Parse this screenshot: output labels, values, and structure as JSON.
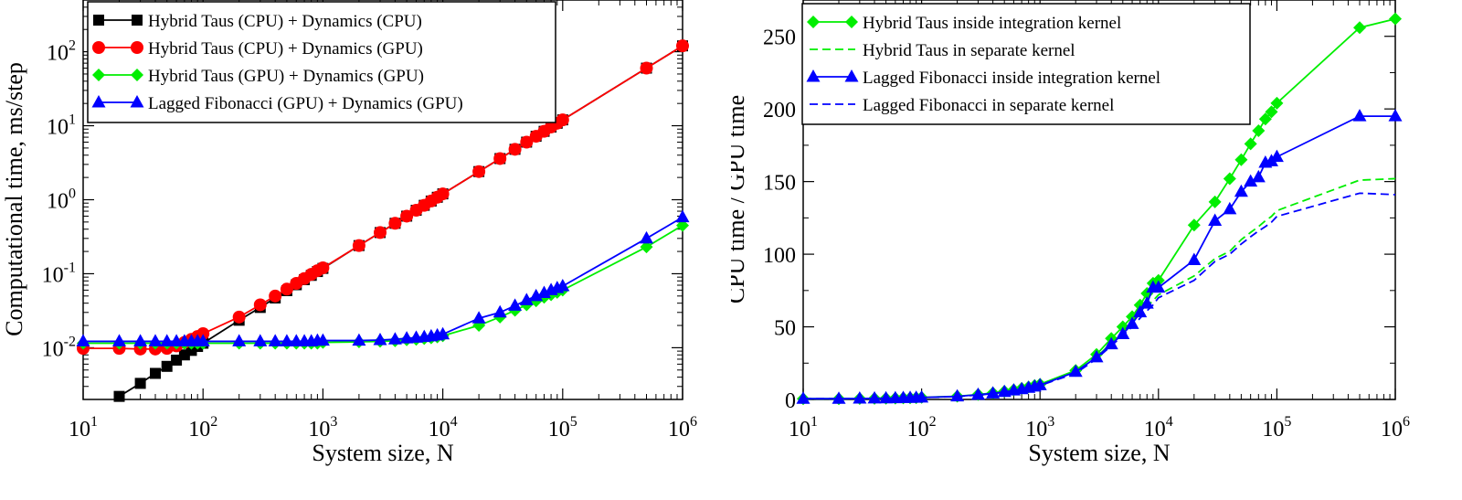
{
  "colors": {
    "cpu_cpu": "#000000",
    "cpu_gpu": "#ff0000",
    "gpu_gpu": "#00ee00",
    "lagged": "#0000ff"
  },
  "chart_data": [
    {
      "type": "line",
      "title": "",
      "xlabel": "System size, N",
      "ylabel": "Computational time, ms/step",
      "xscale": "log",
      "yscale": "log",
      "xlim": [
        10,
        1000000
      ],
      "ylim": [
        0.002,
        500
      ],
      "xticks": [
        {
          "base": "10",
          "exp": "1"
        },
        {
          "base": "10",
          "exp": "2"
        },
        {
          "base": "10",
          "exp": "3"
        },
        {
          "base": "10",
          "exp": "4"
        },
        {
          "base": "10",
          "exp": "5"
        },
        {
          "base": "10",
          "exp": "6"
        }
      ],
      "yticks": [
        {
          "value": 0.01,
          "base": "10",
          "exp": "-2"
        },
        {
          "value": 0.1,
          "base": "10",
          "exp": "-1"
        },
        {
          "value": 1,
          "base": "10",
          "exp": "0"
        },
        {
          "value": 10,
          "base": "10",
          "exp": "1"
        },
        {
          "value": 100,
          "base": "10",
          "exp": "2"
        }
      ],
      "legend": "top-left",
      "series": [
        {
          "name": "Hybrid Taus (CPU) + Dynamics (CPU)",
          "color_key": "cpu_cpu",
          "marker": "square",
          "x": [
            20,
            30,
            40,
            50,
            60,
            70,
            80,
            90,
            100,
            200,
            300,
            400,
            500,
            600,
            700,
            800,
            900,
            1000,
            2000,
            3000,
            4000,
            5000,
            6000,
            7000,
            8000,
            9000,
            10000,
            20000,
            30000,
            40000,
            50000,
            60000,
            70000,
            80000,
            90000,
            100000,
            500000,
            1000000
          ],
          "y": [
            0.0022,
            0.0033,
            0.0045,
            0.0056,
            0.0068,
            0.008,
            0.0092,
            0.0104,
            0.0115,
            0.0235,
            0.035,
            0.047,
            0.059,
            0.071,
            0.083,
            0.095,
            0.107,
            0.118,
            0.24,
            0.36,
            0.48,
            0.6,
            0.72,
            0.84,
            0.96,
            1.08,
            1.2,
            2.4,
            3.6,
            4.8,
            6.0,
            7.2,
            8.4,
            9.6,
            10.8,
            12.0,
            60,
            120
          ]
        },
        {
          "name": "Hybrid Taus (CPU) + Dynamics (GPU)",
          "color_key": "cpu_gpu",
          "marker": "circle",
          "x": [
            10,
            20,
            30,
            40,
            50,
            60,
            70,
            80,
            90,
            100,
            200,
            300,
            400,
            500,
            600,
            700,
            800,
            900,
            1000,
            2000,
            3000,
            4000,
            5000,
            6000,
            7000,
            8000,
            9000,
            10000,
            20000,
            30000,
            40000,
            50000,
            60000,
            70000,
            80000,
            90000,
            100000,
            500000,
            1000000
          ],
          "y": [
            0.0098,
            0.0098,
            0.0096,
            0.0096,
            0.0098,
            0.0106,
            0.0118,
            0.013,
            0.0142,
            0.0155,
            0.026,
            0.038,
            0.05,
            0.062,
            0.074,
            0.086,
            0.098,
            0.11,
            0.12,
            0.24,
            0.36,
            0.48,
            0.6,
            0.72,
            0.84,
            0.96,
            1.08,
            1.2,
            2.4,
            3.6,
            4.8,
            6.0,
            7.2,
            8.4,
            9.6,
            10.8,
            12.0,
            60,
            120
          ]
        },
        {
          "name": "Hybrid Taus (GPU) + Dynamics (GPU)",
          "color_key": "gpu_gpu",
          "marker": "diamond",
          "x": [
            10,
            20,
            30,
            40,
            50,
            60,
            70,
            80,
            90,
            100,
            200,
            300,
            400,
            500,
            600,
            700,
            800,
            900,
            1000,
            2000,
            3000,
            4000,
            5000,
            6000,
            7000,
            8000,
            9000,
            10000,
            20000,
            30000,
            40000,
            50000,
            60000,
            70000,
            80000,
            90000,
            100000,
            500000,
            1000000
          ],
          "y": [
            0.0115,
            0.0115,
            0.0115,
            0.0115,
            0.0115,
            0.0115,
            0.0115,
            0.0115,
            0.0115,
            0.0115,
            0.0115,
            0.0115,
            0.0115,
            0.0115,
            0.0115,
            0.0115,
            0.0115,
            0.0115,
            0.0118,
            0.012,
            0.0122,
            0.0124,
            0.0128,
            0.013,
            0.0133,
            0.0136,
            0.014,
            0.0145,
            0.02,
            0.026,
            0.032,
            0.038,
            0.043,
            0.048,
            0.052,
            0.056,
            0.06,
            0.23,
            0.45
          ]
        },
        {
          "name": "Lagged Fibonacci (GPU) + Dynamics (GPU)",
          "color_key": "lagged",
          "marker": "triangle",
          "x": [
            10,
            20,
            30,
            40,
            50,
            60,
            70,
            80,
            90,
            100,
            200,
            300,
            400,
            500,
            600,
            700,
            800,
            900,
            1000,
            2000,
            3000,
            4000,
            5000,
            6000,
            7000,
            8000,
            9000,
            10000,
            20000,
            30000,
            40000,
            50000,
            60000,
            70000,
            80000,
            90000,
            100000,
            500000,
            1000000
          ],
          "y": [
            0.0122,
            0.0122,
            0.0122,
            0.0122,
            0.0122,
            0.0122,
            0.0122,
            0.0122,
            0.0122,
            0.0122,
            0.0122,
            0.0122,
            0.0122,
            0.0122,
            0.0122,
            0.0122,
            0.0122,
            0.0125,
            0.0125,
            0.0125,
            0.0127,
            0.013,
            0.0134,
            0.0137,
            0.014,
            0.0143,
            0.0147,
            0.0152,
            0.025,
            0.03,
            0.037,
            0.044,
            0.05,
            0.055,
            0.06,
            0.064,
            0.068,
            0.3,
            0.58
          ]
        }
      ]
    },
    {
      "type": "line",
      "title": "",
      "xlabel": "System size, N",
      "ylabel": "CPU time / GPU time",
      "xscale": "log",
      "yscale": "linear",
      "xlim": [
        10,
        1000000
      ],
      "ylim": [
        0,
        275
      ],
      "xticks": [
        {
          "base": "10",
          "exp": "1"
        },
        {
          "base": "10",
          "exp": "2"
        },
        {
          "base": "10",
          "exp": "3"
        },
        {
          "base": "10",
          "exp": "4"
        },
        {
          "base": "10",
          "exp": "5"
        },
        {
          "base": "10",
          "exp": "6"
        }
      ],
      "yticks": [
        {
          "value": 0,
          "label": "0"
        },
        {
          "value": 50,
          "label": "50"
        },
        {
          "value": 100,
          "label": "100"
        },
        {
          "value": 150,
          "label": "150"
        },
        {
          "value": 200,
          "label": "200"
        },
        {
          "value": 250,
          "label": "250"
        }
      ],
      "legend": "top-left",
      "series": [
        {
          "name": "Hybrid Taus inside integration kernel",
          "color_key": "gpu_gpu",
          "marker": "diamond",
          "dashed": false,
          "x": [
            10,
            20,
            30,
            40,
            50,
            60,
            70,
            80,
            90,
            100,
            200,
            300,
            400,
            500,
            600,
            700,
            800,
            900,
            1000,
            2000,
            3000,
            4000,
            5000,
            6000,
            7000,
            8000,
            9000,
            10000,
            20000,
            30000,
            40000,
            50000,
            60000,
            70000,
            80000,
            90000,
            100000,
            500000,
            1000000
          ],
          "y": [
            0.5,
            0.5,
            0.6,
            0.7,
            0.8,
            0.9,
            1.0,
            1.1,
            1.2,
            1.4,
            2.2,
            3.4,
            4.5,
            5.6,
            6.6,
            7.6,
            8.6,
            9.6,
            10.5,
            20,
            31,
            42,
            50,
            57,
            65,
            73,
            80,
            82,
            120,
            136,
            152,
            165,
            176,
            185,
            193,
            198,
            204,
            256,
            262
          ]
        },
        {
          "name": "Hybrid Taus in separate kernel",
          "color_key": "gpu_gpu",
          "marker": "none",
          "dashed": true,
          "x": [
            10,
            20,
            30,
            40,
            50,
            60,
            70,
            80,
            90,
            100,
            200,
            300,
            400,
            500,
            600,
            700,
            800,
            900,
            1000,
            2000,
            3000,
            4000,
            5000,
            6000,
            7000,
            8000,
            9000,
            10000,
            20000,
            30000,
            40000,
            50000,
            60000,
            70000,
            80000,
            90000,
            100000,
            500000,
            1000000
          ],
          "y": [
            0.5,
            0.5,
            0.6,
            0.7,
            0.8,
            0.9,
            1.0,
            1.1,
            1.2,
            1.3,
            2.1,
            3.2,
            4.2,
            5.2,
            6.2,
            7.1,
            8.0,
            8.9,
            9.8,
            19,
            29,
            39,
            46,
            53,
            59,
            64,
            68,
            72,
            85,
            97,
            102,
            110,
            115,
            119,
            123,
            126,
            130,
            151,
            152
          ]
        },
        {
          "name": "Lagged Fibonacci inside integration kernel",
          "color_key": "lagged",
          "marker": "triangle",
          "dashed": false,
          "x": [
            10,
            20,
            30,
            40,
            50,
            60,
            70,
            80,
            90,
            100,
            200,
            300,
            400,
            500,
            600,
            700,
            800,
            900,
            1000,
            2000,
            3000,
            4000,
            5000,
            6000,
            7000,
            8000,
            9000,
            10000,
            20000,
            30000,
            40000,
            50000,
            60000,
            70000,
            80000,
            90000,
            100000,
            500000,
            1000000
          ],
          "y": [
            0.5,
            0.5,
            0.6,
            0.7,
            0.8,
            0.9,
            1.0,
            1.1,
            1.2,
            1.3,
            2.1,
            3.2,
            4.2,
            5.2,
            6.2,
            7.1,
            8.0,
            8.9,
            9.8,
            19,
            29,
            38,
            45,
            52,
            60,
            66,
            77,
            77,
            96,
            123,
            131,
            143,
            150,
            153,
            163,
            164,
            167,
            195,
            195
          ]
        },
        {
          "name": "Lagged Fibonacci in separate kernel",
          "color_key": "lagged",
          "marker": "none",
          "dashed": true,
          "x": [
            10,
            20,
            30,
            40,
            50,
            60,
            70,
            80,
            90,
            100,
            200,
            300,
            400,
            500,
            600,
            700,
            800,
            900,
            1000,
            2000,
            3000,
            4000,
            5000,
            6000,
            7000,
            8000,
            9000,
            10000,
            20000,
            30000,
            40000,
            50000,
            60000,
            70000,
            80000,
            90000,
            100000,
            500000,
            1000000
          ],
          "y": [
            0.5,
            0.5,
            0.6,
            0.7,
            0.8,
            0.9,
            1.0,
            1.1,
            1.2,
            1.3,
            2.0,
            3.0,
            4.0,
            5.0,
            6.0,
            6.9,
            7.8,
            8.7,
            9.6,
            18,
            28,
            37,
            44,
            50,
            56,
            61,
            65,
            70,
            82,
            95,
            100,
            107,
            112,
            116,
            119,
            122,
            126,
            142,
            141
          ]
        }
      ]
    }
  ]
}
